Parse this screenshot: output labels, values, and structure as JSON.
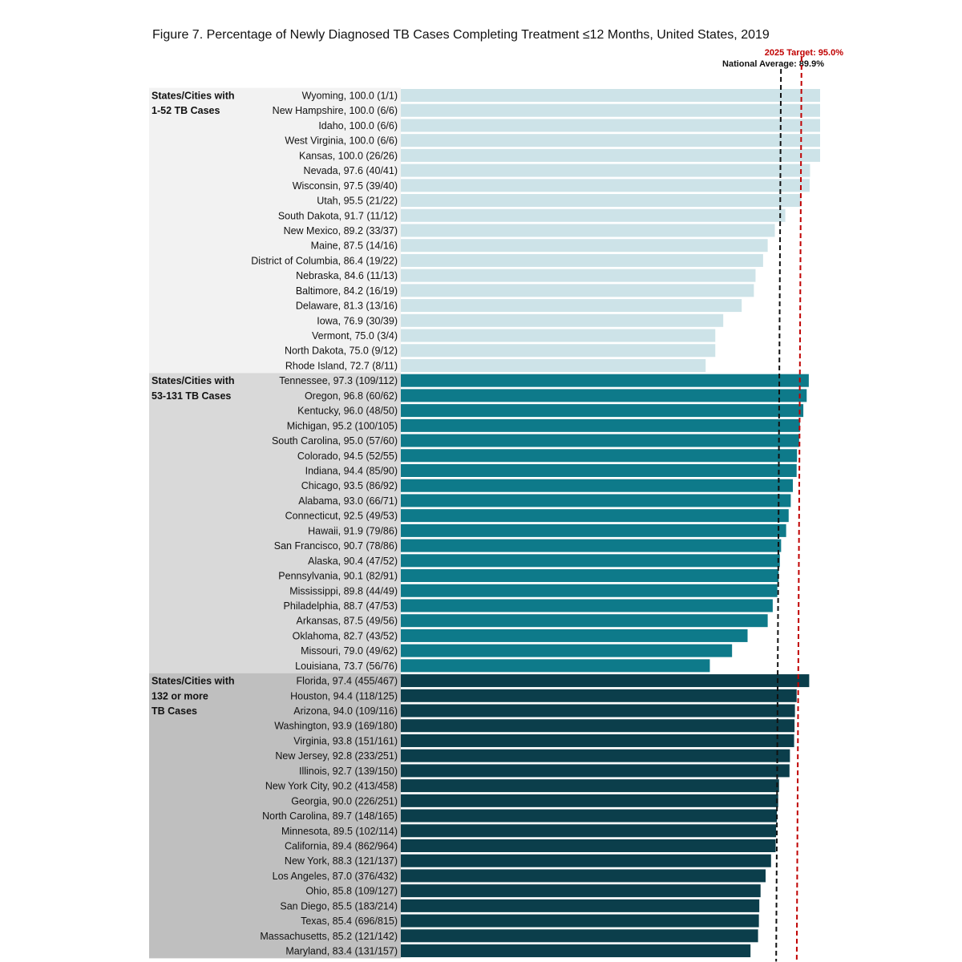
{
  "chart_data": {
    "type": "bar",
    "orientation": "horizontal",
    "title": "Figure 7.  Percentage of Newly Diagnosed TB Cases Completing Treatment ≤12 Months, United States, 2019",
    "xlim": [
      0,
      100
    ],
    "grid": false,
    "reference_lines": [
      {
        "label": "National Average: 89.9%",
        "value": 89.9,
        "color": "#111111",
        "style": "dashed"
      },
      {
        "label": "2025 Target: 95.0%",
        "value": 95.0,
        "color": "#c00000",
        "style": "dashed"
      }
    ],
    "groups": [
      {
        "label_lines": [
          "States/Cities with",
          "1-52 TB Cases"
        ],
        "bar_color": "#cde3e8",
        "band_color": "#f2f2f2",
        "items": [
          {
            "label": "Wyoming, 100.0 (1/1)",
            "value": 100.0
          },
          {
            "label": "New Hampshire, 100.0 (6/6)",
            "value": 100.0
          },
          {
            "label": "Idaho, 100.0 (6/6)",
            "value": 100.0
          },
          {
            "label": "West Virginia, 100.0 (6/6)",
            "value": 100.0
          },
          {
            "label": "Kansas, 100.0 (26/26)",
            "value": 100.0
          },
          {
            "label": "Nevada, 97.6 (40/41)",
            "value": 97.6
          },
          {
            "label": "Wisconsin, 97.5 (39/40)",
            "value": 97.5
          },
          {
            "label": "Utah, 95.5 (21/22)",
            "value": 95.5
          },
          {
            "label": "South Dakota, 91.7 (11/12)",
            "value": 91.7
          },
          {
            "label": "New Mexico, 89.2 (33/37)",
            "value": 89.2
          },
          {
            "label": "Maine, 87.5 (14/16)",
            "value": 87.5
          },
          {
            "label": "District of Columbia, 86.4 (19/22)",
            "value": 86.4
          },
          {
            "label": "Nebraska, 84.6 (11/13)",
            "value": 84.6
          },
          {
            "label": "Baltimore, 84.2 (16/19)",
            "value": 84.2
          },
          {
            "label": "Delaware, 81.3 (13/16)",
            "value": 81.3
          },
          {
            "label": "Iowa, 76.9 (30/39)",
            "value": 76.9
          },
          {
            "label": "Vermont, 75.0 (3/4)",
            "value": 75.0
          },
          {
            "label": "North Dakota, 75.0 (9/12)",
            "value": 75.0
          },
          {
            "label": "Rhode Island, 72.7 (8/11)",
            "value": 72.7
          }
        ]
      },
      {
        "label_lines": [
          "States/Cities with",
          "53-131 TB Cases"
        ],
        "bar_color": "#0e7a8a",
        "band_color": "#d9d9d9",
        "items": [
          {
            "label": "Tennessee, 97.3 (109/112)",
            "value": 97.3
          },
          {
            "label": "Oregon, 96.8 (60/62)",
            "value": 96.8
          },
          {
            "label": "Kentucky, 96.0 (48/50)",
            "value": 96.0
          },
          {
            "label": "Michigan, 95.2 (100/105)",
            "value": 95.2
          },
          {
            "label": "South Carolina, 95.0 (57/60)",
            "value": 95.0
          },
          {
            "label": "Colorado, 94.5 (52/55)",
            "value": 94.5
          },
          {
            "label": "Indiana, 94.4 (85/90)",
            "value": 94.4
          },
          {
            "label": "Chicago, 93.5 (86/92)",
            "value": 93.5
          },
          {
            "label": "Alabama, 93.0 (66/71)",
            "value": 93.0
          },
          {
            "label": "Connecticut, 92.5 (49/53)",
            "value": 92.5
          },
          {
            "label": "Hawaii, 91.9 (79/86)",
            "value": 91.9
          },
          {
            "label": "San Francisco, 90.7 (78/86)",
            "value": 90.7
          },
          {
            "label": "Alaska, 90.4 (47/52)",
            "value": 90.4
          },
          {
            "label": "Pennsylvania, 90.1 (82/91)",
            "value": 90.1
          },
          {
            "label": "Mississippi, 89.8 (44/49)",
            "value": 89.8
          },
          {
            "label": "Philadelphia, 88.7 (47/53)",
            "value": 88.7
          },
          {
            "label": "Arkansas, 87.5 (49/56)",
            "value": 87.5
          },
          {
            "label": "Oklahoma, 82.7 (43/52)",
            "value": 82.7
          },
          {
            "label": "Missouri, 79.0 (49/62)",
            "value": 79.0
          },
          {
            "label": "Louisiana, 73.7 (56/76)",
            "value": 73.7
          }
        ]
      },
      {
        "label_lines": [
          "States/Cities with",
          "132 or more",
          "TB Cases"
        ],
        "bar_color": "#0b3e4b",
        "band_color": "#bfbfbf",
        "items": [
          {
            "label": "Florida, 97.4 (455/467)",
            "value": 97.4
          },
          {
            "label": "Houston, 94.4 (118/125)",
            "value": 94.4
          },
          {
            "label": "Arizona, 94.0 (109/116)",
            "value": 94.0
          },
          {
            "label": "Washington, 93.9 (169/180)",
            "value": 93.9
          },
          {
            "label": "Virginia, 93.8 (151/161)",
            "value": 93.8
          },
          {
            "label": "New Jersey, 92.8 (233/251)",
            "value": 92.8
          },
          {
            "label": "Illinois, 92.7 (139/150)",
            "value": 92.7
          },
          {
            "label": "New York City, 90.2 (413/458)",
            "value": 90.2
          },
          {
            "label": "Georgia, 90.0 (226/251)",
            "value": 90.0
          },
          {
            "label": "North Carolina, 89.7 (148/165)",
            "value": 89.7
          },
          {
            "label": "Minnesota, 89.5 (102/114)",
            "value": 89.5
          },
          {
            "label": "California, 89.4 (862/964)",
            "value": 89.4
          },
          {
            "label": "New York, 88.3 (121/137)",
            "value": 88.3
          },
          {
            "label": "Los Angeles, 87.0 (376/432)",
            "value": 87.0
          },
          {
            "label": "Ohio, 85.8 (109/127)",
            "value": 85.8
          },
          {
            "label": "San Diego, 85.5 (183/214)",
            "value": 85.5
          },
          {
            "label": "Texas, 85.4 (696/815)",
            "value": 85.4
          },
          {
            "label": "Massachusetts, 85.2 (121/142)",
            "value": 85.2
          },
          {
            "label": "Maryland, 83.4 (131/157)",
            "value": 83.4
          }
        ]
      }
    ]
  }
}
